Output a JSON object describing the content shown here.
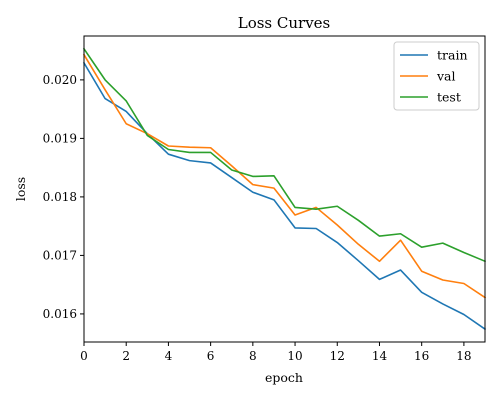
{
  "chart_data": {
    "type": "line",
    "title": "Loss Curves",
    "xlabel": "epoch",
    "ylabel": "loss",
    "xlim": [
      0,
      19
    ],
    "ylim": [
      0.01552,
      0.02075
    ],
    "xticks": [
      0,
      2,
      4,
      6,
      8,
      10,
      12,
      14,
      16,
      18
    ],
    "xtick_labels": [
      "0",
      "2",
      "4",
      "6",
      "8",
      "10",
      "12",
      "14",
      "16",
      "18"
    ],
    "yticks": [
      0.016,
      0.017,
      0.018,
      0.019,
      0.02
    ],
    "ytick_labels": [
      "0.016",
      "0.017",
      "0.018",
      "0.019",
      "0.020"
    ],
    "grid": false,
    "legend_position": "top-right",
    "x": [
      0,
      1,
      2,
      3,
      4,
      5,
      6,
      7,
      8,
      9,
      10,
      11,
      12,
      13,
      14,
      15,
      16,
      17,
      18,
      19
    ],
    "series": [
      {
        "name": "train",
        "color": "#1f77b4",
        "values": [
          0.02029,
          0.01968,
          0.01946,
          0.01908,
          0.01873,
          0.01862,
          0.01858,
          0.01833,
          0.01808,
          0.01795,
          0.01747,
          0.01746,
          0.01722,
          0.01691,
          0.01659,
          0.01675,
          0.01637,
          0.01617,
          0.01599,
          0.01574
        ]
      },
      {
        "name": "val",
        "color": "#ff7f0e",
        "values": [
          0.02043,
          0.01983,
          0.01925,
          0.01908,
          0.01887,
          0.01885,
          0.01884,
          0.01853,
          0.01821,
          0.01815,
          0.01769,
          0.01782,
          0.01752,
          0.01719,
          0.0169,
          0.01726,
          0.01673,
          0.01658,
          0.01652,
          0.01628
        ]
      },
      {
        "name": "test",
        "color": "#2ca02c",
        "values": [
          0.02053,
          0.02,
          0.01964,
          0.01905,
          0.01881,
          0.01876,
          0.01876,
          0.01846,
          0.01835,
          0.01836,
          0.01782,
          0.01779,
          0.01784,
          0.0176,
          0.01733,
          0.01737,
          0.01714,
          0.01721,
          0.01705,
          0.0169
        ]
      }
    ]
  }
}
